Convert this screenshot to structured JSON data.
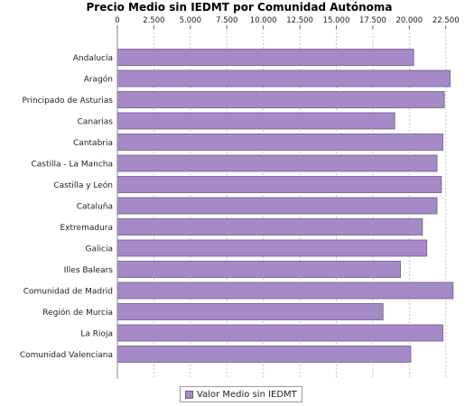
{
  "chart_data": {
    "type": "bar",
    "orientation": "horizontal",
    "title": "Precio Medio sin IEDMT por Comunidad Autónoma",
    "xlim": [
      0,
      24000
    ],
    "x_ticks": [
      0,
      2500,
      5000,
      7500,
      10000,
      12500,
      15000,
      17500,
      20000,
      22500
    ],
    "x_tick_labels": [
      "0",
      "2.500",
      "5.000",
      "7.500",
      "10.000",
      "12.500",
      "15.000",
      "17.500",
      "20.000",
      "22.500"
    ],
    "x_axis_position": "top",
    "grid": "vertical dashed",
    "legend_position": "bottom",
    "categories": [
      "Andalucía",
      "Aragón",
      "Principado de Asturias",
      "Canarias",
      "Cantabria",
      "Castilla - La Mancha",
      "Castilla y León",
      "Cataluña",
      "Extremadura",
      "Galicia",
      "Illes Balears",
      "Comunidad de Madrid",
      "Región de Murcia",
      "La Rioja",
      "Comunidad Valenciana"
    ],
    "series": [
      {
        "name": "Valor Medio sin IEDMT",
        "color": "#a68ac8",
        "values": [
          20300,
          22800,
          22400,
          19000,
          22300,
          21900,
          22200,
          21900,
          20900,
          21200,
          19400,
          23000,
          18200,
          22300,
          20100
        ]
      }
    ]
  }
}
